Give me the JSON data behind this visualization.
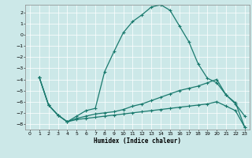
{
  "xlabel": "Humidex (Indice chaleur)",
  "bg_color": "#cce8e8",
  "grid_color": "#ffffff",
  "line_color": "#1a7a6e",
  "xlim": [
    -0.5,
    23.5
  ],
  "ylim": [
    -8.5,
    2.7
  ],
  "yticks": [
    2,
    1,
    0,
    -1,
    -2,
    -3,
    -4,
    -5,
    -6,
    -7,
    -8
  ],
  "xticks": [
    0,
    1,
    2,
    3,
    4,
    5,
    6,
    7,
    8,
    9,
    10,
    11,
    12,
    13,
    14,
    15,
    16,
    17,
    18,
    19,
    20,
    21,
    22,
    23
  ],
  "line1_x": [
    1,
    2,
    3,
    4,
    5,
    6,
    7,
    8,
    9,
    10,
    11,
    12,
    13,
    14,
    15,
    16,
    17,
    18,
    19,
    20,
    21,
    22,
    23
  ],
  "line1_y": [
    -3.8,
    -6.3,
    -7.2,
    -7.8,
    -7.3,
    -6.8,
    -6.6,
    -3.3,
    -1.5,
    0.2,
    1.2,
    1.8,
    2.5,
    2.7,
    2.2,
    0.8,
    -0.6,
    -2.6,
    -3.9,
    -4.3,
    -5.4,
    -6.2,
    -7.3
  ],
  "line2_x": [
    1,
    2,
    3,
    4,
    5,
    6,
    7,
    8,
    9,
    10,
    11,
    12,
    13,
    14,
    15,
    16,
    17,
    18,
    19,
    20,
    21,
    22,
    23
  ],
  "line2_y": [
    -3.8,
    -6.3,
    -7.2,
    -7.8,
    -7.5,
    -7.3,
    -7.1,
    -7.0,
    -6.9,
    -6.7,
    -6.4,
    -6.2,
    -5.9,
    -5.6,
    -5.3,
    -5.0,
    -4.8,
    -4.6,
    -4.3,
    -4.0,
    -5.4,
    -6.1,
    -8.3
  ],
  "line3_x": [
    1,
    2,
    3,
    4,
    5,
    6,
    7,
    8,
    9,
    10,
    11,
    12,
    13,
    14,
    15,
    16,
    17,
    18,
    19,
    20,
    21,
    22,
    23
  ],
  "line3_y": [
    -3.8,
    -6.3,
    -7.2,
    -7.8,
    -7.6,
    -7.5,
    -7.4,
    -7.3,
    -7.2,
    -7.1,
    -7.0,
    -6.9,
    -6.8,
    -6.7,
    -6.6,
    -6.5,
    -6.4,
    -6.3,
    -6.2,
    -6.0,
    -6.4,
    -6.8,
    -8.3
  ]
}
